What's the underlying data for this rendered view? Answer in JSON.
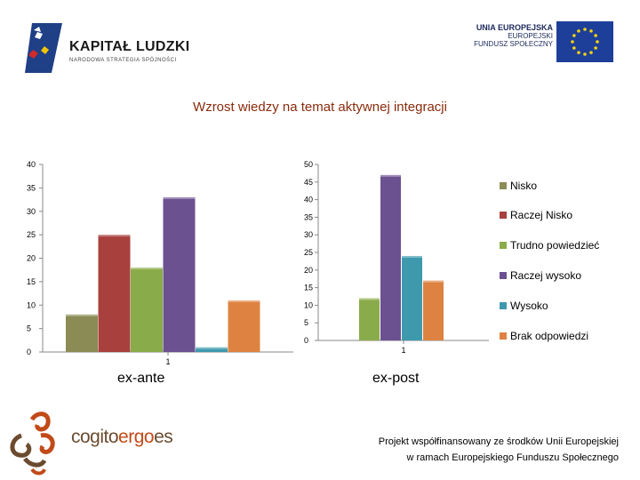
{
  "header": {
    "kapital_title": "KAPITAŁ LUDZKI",
    "kapital_subtitle": "NARODOWA STRATEGIA SPÓJNOŚCI",
    "eu_title": "UNIA EUROPEJSKA",
    "eu_line1": "EUROPEJSKI",
    "eu_line2": "FUNDUSZ SPOŁECZNY"
  },
  "colors": {
    "title": "#8a2b0d",
    "Nisko": "#8b8b55",
    "Raczej Nisko": "#a8403d",
    "Trudno powiedzieć": "#8aab49",
    "Raczej wysoko": "#6c5191",
    "Wysoko": "#3e99ad",
    "Brak odpowiedzi": "#dd8240"
  },
  "chart_data": [
    {
      "type": "bar",
      "title": "Wzrost wiedzy na temat aktywnej integracji",
      "categories": [
        "1"
      ],
      "category_label": "ex-ante",
      "ylim": [
        0,
        40
      ],
      "yticks": [
        0,
        5,
        10,
        15,
        20,
        25,
        30,
        35,
        40
      ],
      "series": [
        {
          "name": "Nisko",
          "values": [
            8
          ]
        },
        {
          "name": "Raczej Nisko",
          "values": [
            25
          ]
        },
        {
          "name": "Trudno powiedzieć",
          "values": [
            18
          ]
        },
        {
          "name": "Raczej wysoko",
          "values": [
            33
          ]
        },
        {
          "name": "Wysoko",
          "values": [
            1
          ]
        },
        {
          "name": "Brak odpowiedzi",
          "values": [
            11
          ]
        }
      ]
    },
    {
      "type": "bar",
      "categories": [
        "1"
      ],
      "category_label": "ex-post",
      "ylim": [
        0,
        50
      ],
      "yticks": [
        0,
        5,
        10,
        15,
        20,
        25,
        30,
        35,
        40,
        45,
        50
      ],
      "series": [
        {
          "name": "Nisko",
          "values": [
            0
          ]
        },
        {
          "name": "Raczej Nisko",
          "values": [
            0
          ]
        },
        {
          "name": "Trudno powiedzieć",
          "values": [
            12
          ]
        },
        {
          "name": "Raczej wysoko",
          "values": [
            47
          ]
        },
        {
          "name": "Wysoko",
          "values": [
            24
          ]
        },
        {
          "name": "Brak odpowiedzi",
          "values": [
            17
          ]
        }
      ],
      "legend_position": "right",
      "legend": [
        "Nisko",
        "Raczej Nisko",
        "Trudno powiedzieć",
        "Raczej wysoko",
        "Wysoko",
        "Brak odpowiedzi"
      ]
    }
  ],
  "footer": {
    "brand_a": "cogito",
    "brand_b": "ergo",
    "brand_c": "es",
    "line1": "Projekt  współfinansowany ze środków Unii Europejskiej",
    "line2": "w ramach Europejskiego Funduszu Społecznego"
  }
}
